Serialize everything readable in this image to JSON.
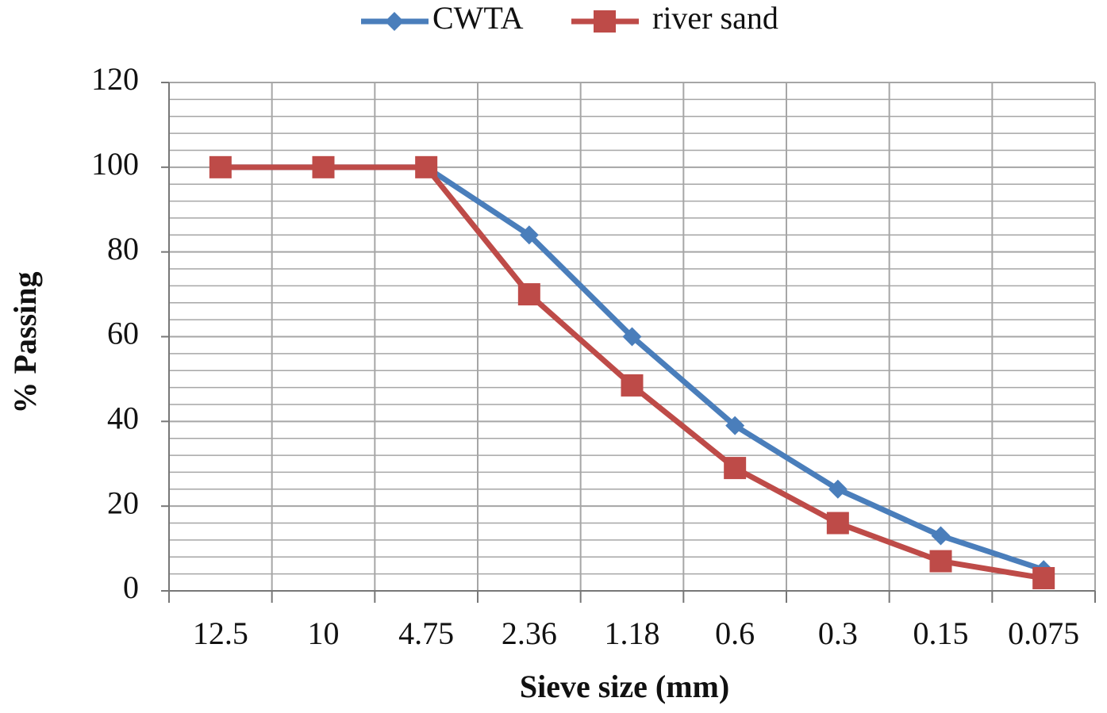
{
  "chart_data": {
    "type": "line",
    "x_label": "Sieve size (mm)",
    "y_label": "% Passing",
    "categories": [
      "12.5",
      "10",
      "4.75",
      "2.36",
      "1.18",
      "0.6",
      "0.3",
      "0.15",
      "0.075"
    ],
    "series": [
      {
        "name": "CWTA",
        "color": "#4a7ebb",
        "marker": "diamond",
        "values": [
          100,
          100,
          100,
          84,
          60,
          39,
          24,
          13,
          5
        ]
      },
      {
        "name": "river sand",
        "color": "#be4b48",
        "marker": "square",
        "values": [
          100,
          100,
          100,
          70,
          48.5,
          29,
          16,
          7,
          3
        ]
      }
    ],
    "ylim": [
      0,
      120
    ],
    "yticks": [
      0,
      20,
      40,
      60,
      80,
      100,
      120
    ],
    "grid": true,
    "minor_grid_step": 4,
    "legend": "top"
  }
}
